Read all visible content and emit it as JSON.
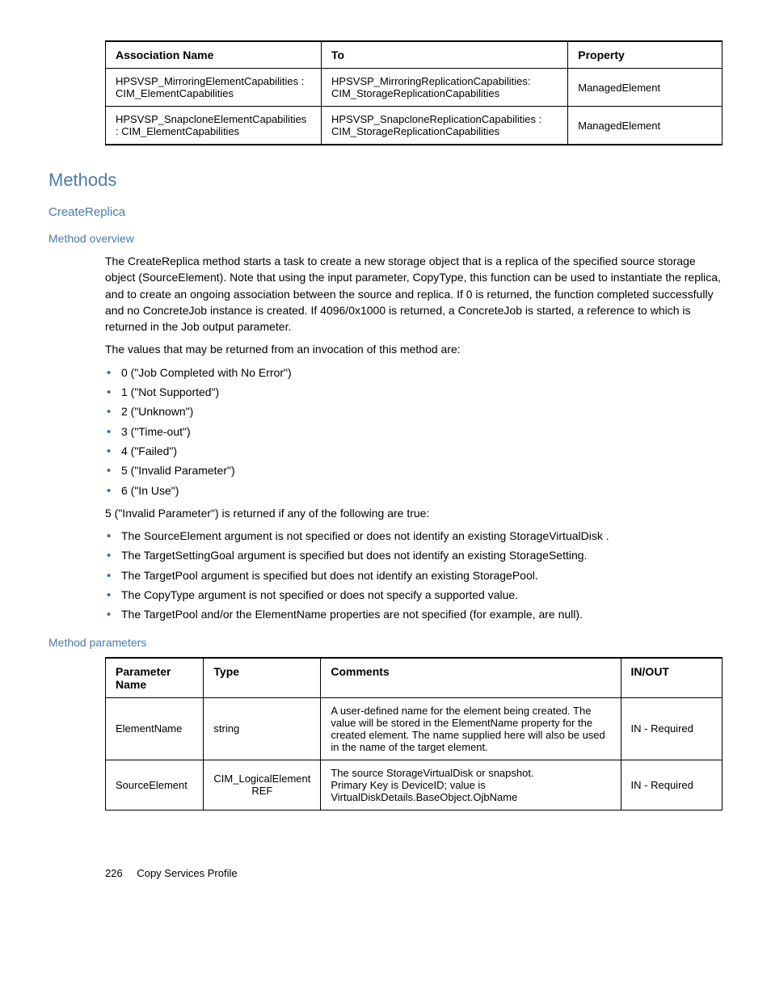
{
  "assoc_table": {
    "headers": [
      "Association Name",
      "To",
      "Property"
    ],
    "rows": [
      [
        "HPSVSP_MirroringElementCapabilities : CIM_ElementCapabilities",
        "HPSVSP_MirroringReplicationCapabilities: CIM_StorageReplicationCapabilities",
        "ManagedElement"
      ],
      [
        "HPSVSP_SnapcloneElementCapabilities : CIM_ElementCapabilities",
        "HPSVSP_SnapcloneReplicationCapabilities : CIM_StorageReplicationCapabilities",
        "ManagedElement"
      ]
    ],
    "col_widths": [
      "35%",
      "40%",
      "25%"
    ]
  },
  "headings": {
    "methods": "Methods",
    "create_replica": "CreateReplica",
    "method_overview": "Method overview",
    "method_parameters": "Method parameters"
  },
  "overview": {
    "p1": "The CreateReplica method starts a task to create a new storage object that is a replica of the specified source storage object (SourceElement). Note that using the input parameter, CopyType, this function can be used to instantiate the replica, and to create an ongoing association between the source and replica. If 0 is returned, the function completed successfully and no ConcreteJob instance is created. If 4096/0x1000 is returned, a ConcreteJob is started, a reference to which is returned in the Job output parameter.",
    "p2": "The values that may be returned from an invocation of this method are:",
    "return_values": [
      "0 (\"Job Completed with No Error\")",
      "1 (\"Not Supported\")",
      "2 (\"Unknown\")",
      "3 (\"Time-out\")",
      "4 (\"Failed\")",
      "5 (\"Invalid Parameter\")",
      "6 (\"In Use\")"
    ],
    "p3": "5 (\"Invalid Parameter\") is returned if any of the following are true:",
    "conditions": [
      "The SourceElement argument is not specified or does not identify an existing StorageVirtualDisk .",
      "The TargetSettingGoal argument is specified but does not identify an existing StorageSetting.",
      "The TargetPool argument is specified but does not identify an existing StoragePool.",
      "The CopyType argument is not specified or does not specify a supported value.",
      "The TargetPool and/or the ElementName properties are not specified (for example, are null)."
    ]
  },
  "param_table": {
    "headers": [
      "Parameter Name",
      "Type",
      "Comments",
      "IN/OUT"
    ],
    "rows": [
      [
        "ElementName",
        "string",
        "A user-defined name for the element being created. The value will be stored in the ElementName property for the created element. The name supplied here will also be used in the name of the target element.",
        "IN - Required"
      ],
      [
        "SourceElement",
        "CIM_LogicalElement REF",
        "The source StorageVirtualDisk or snapshot.\nPrimary Key is DeviceID; value is VirtualDiskDetails.BaseObject.OjbName",
        "IN - Required"
      ]
    ],
    "col_widths": [
      "16%",
      "17%",
      "50%",
      "17%"
    ]
  },
  "footer": {
    "page": "226",
    "section": "Copy Services Profile"
  }
}
